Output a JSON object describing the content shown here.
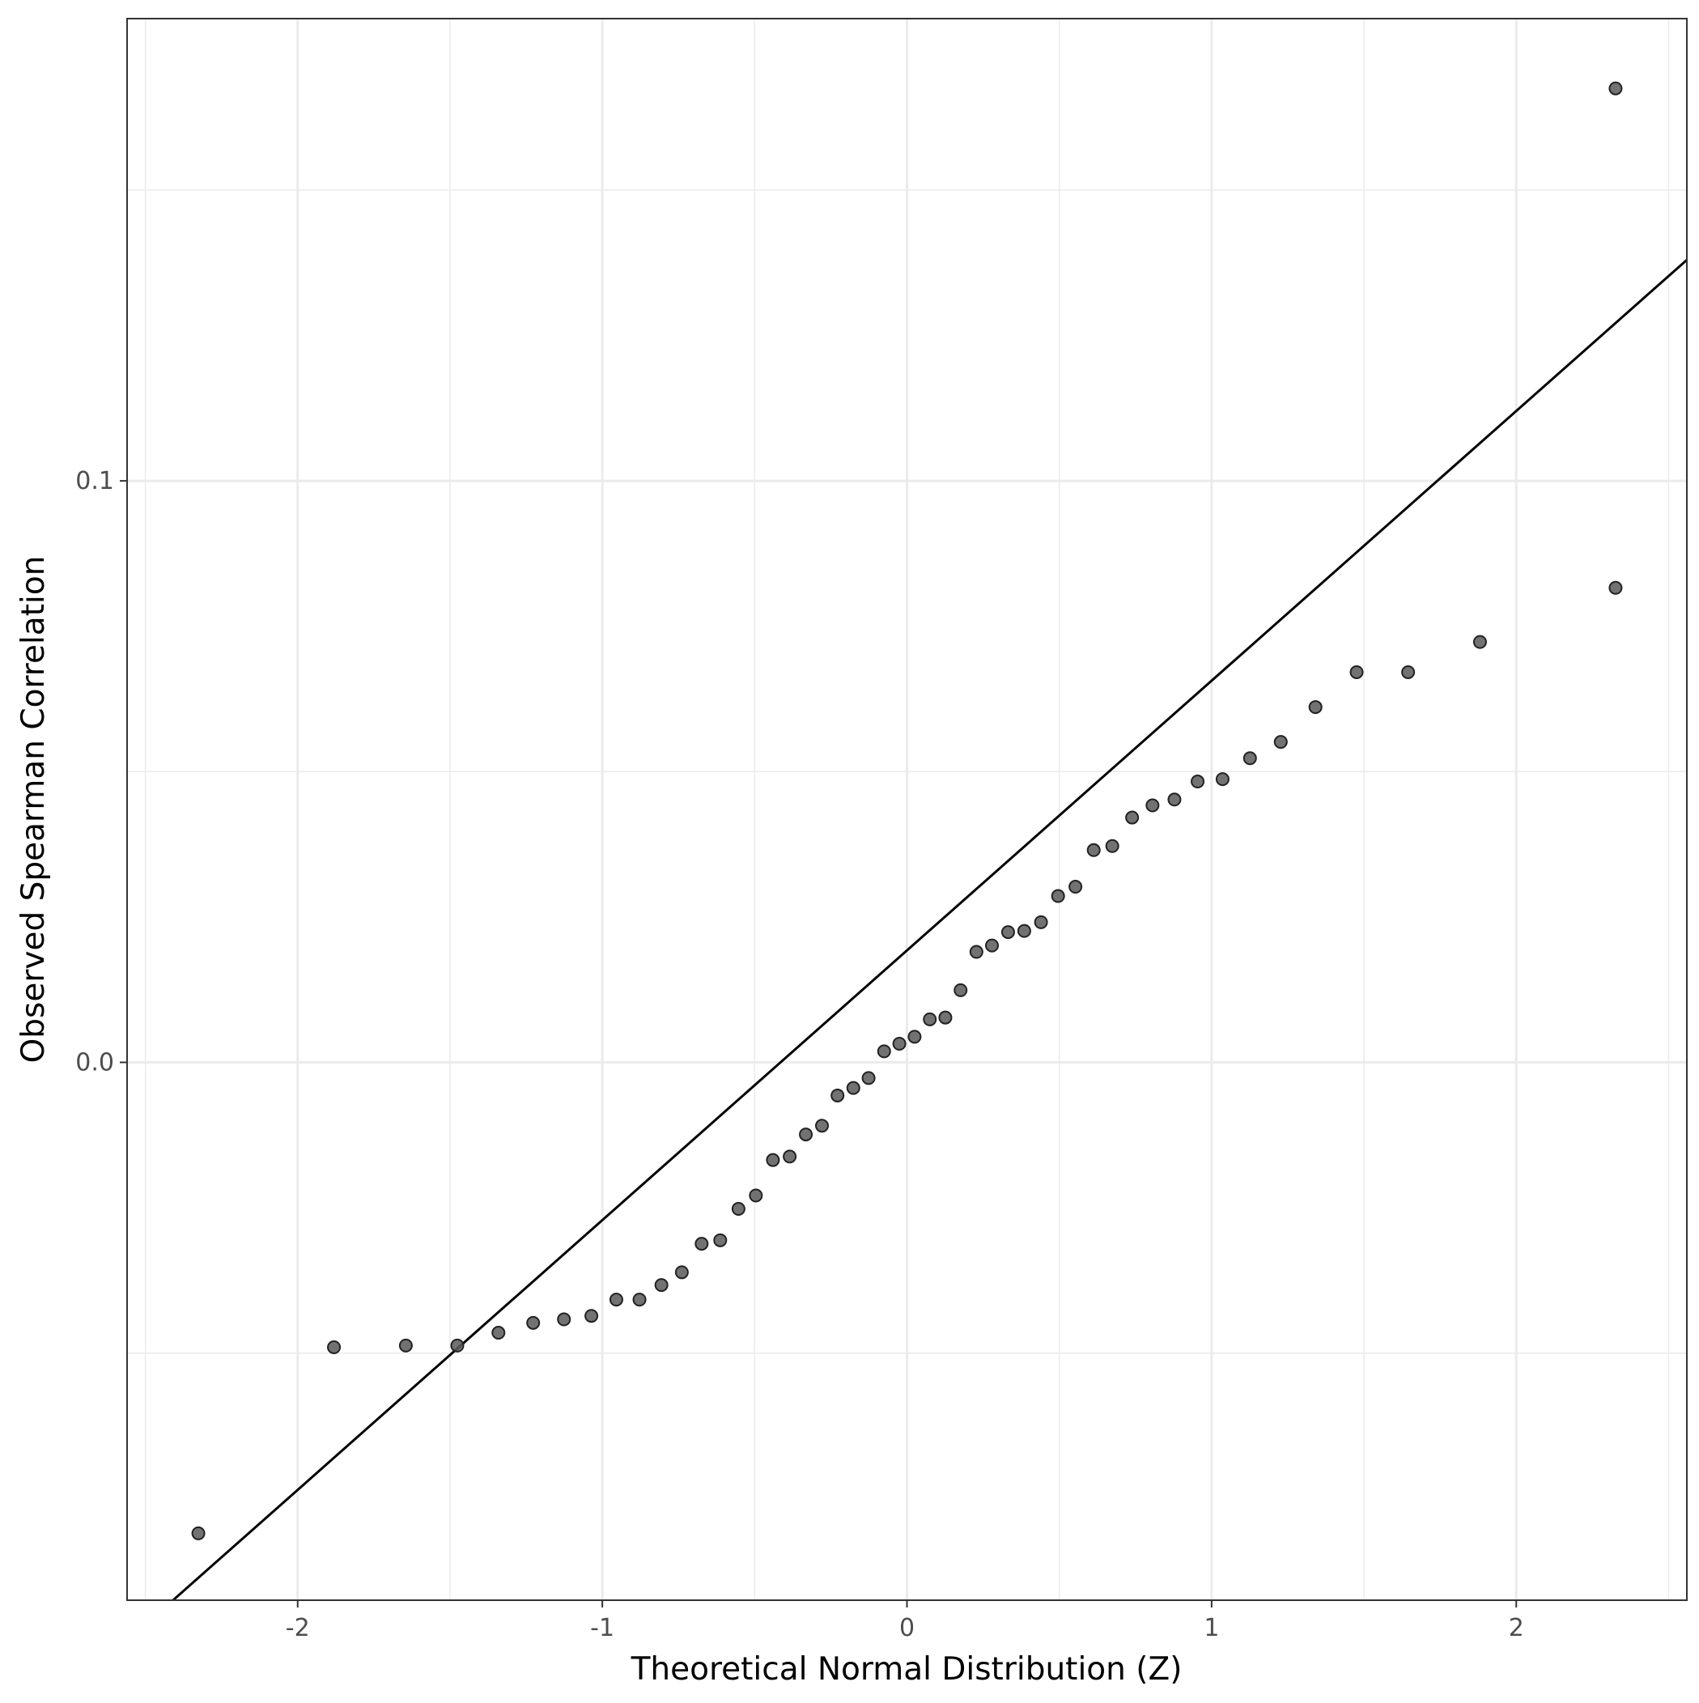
{
  "chart_data": {
    "type": "scatter",
    "title": "",
    "xlabel": "Theoretical Normal Distribution (Z)",
    "ylabel": "Observed Spearman Correlation",
    "xlim": [
      -2.56,
      2.56
    ],
    "ylim": [
      -0.0925,
      0.1795
    ],
    "x_ticks": [
      -2,
      -1,
      0,
      1,
      2
    ],
    "x_tick_labels": [
      "-2",
      "-1",
      "0",
      "1",
      "2"
    ],
    "y_ticks": [
      0.0,
      0.1
    ],
    "y_tick_labels": [
      "0.0",
      "0.1"
    ],
    "grid": true,
    "point_color": "#595959",
    "line_color": "#000000",
    "reference_line": {
      "x1": -2.56,
      "y1": -0.0995,
      "x2": 2.56,
      "y2": 0.138
    },
    "points": {
      "x": [
        -2.326,
        -1.881,
        -1.645,
        -1.476,
        -1.341,
        -1.227,
        -1.126,
        -1.036,
        -0.954,
        -0.878,
        -0.806,
        -0.739,
        -0.674,
        -0.613,
        -0.553,
        -0.496,
        -0.44,
        -0.385,
        -0.332,
        -0.279,
        -0.228,
        -0.176,
        -0.126,
        -0.075,
        -0.025,
        0.025,
        0.075,
        0.126,
        0.176,
        0.228,
        0.279,
        0.332,
        0.385,
        0.44,
        0.496,
        0.553,
        0.613,
        0.674,
        0.739,
        0.806,
        0.878,
        0.954,
        1.036,
        1.126,
        1.227,
        1.341,
        1.476,
        1.645,
        1.881,
        2.326
      ],
      "y": [
        -0.081,
        -0.049,
        -0.0487,
        -0.0487,
        -0.0465,
        -0.0448,
        -0.0442,
        -0.0436,
        -0.0408,
        -0.0408,
        -0.0383,
        -0.0361,
        -0.0312,
        -0.0306,
        -0.0252,
        -0.0229,
        -0.0168,
        -0.0162,
        -0.0124,
        -0.0109,
        -0.0057,
        -0.0044,
        -0.0027,
        0.0019,
        0.0032,
        0.0044,
        0.0074,
        0.0077,
        0.0124,
        0.019,
        0.0201,
        0.0224,
        0.0226,
        0.0241,
        0.0286,
        0.0302,
        0.0365,
        0.0372,
        0.0421,
        0.0442,
        0.0452,
        0.0483,
        0.0487,
        0.0523,
        0.0551,
        0.0611,
        0.0671,
        0.0671,
        0.0723,
        0.0816
      ]
    },
    "outlier_top": {
      "x": 2.326,
      "y": 0.1675
    }
  }
}
